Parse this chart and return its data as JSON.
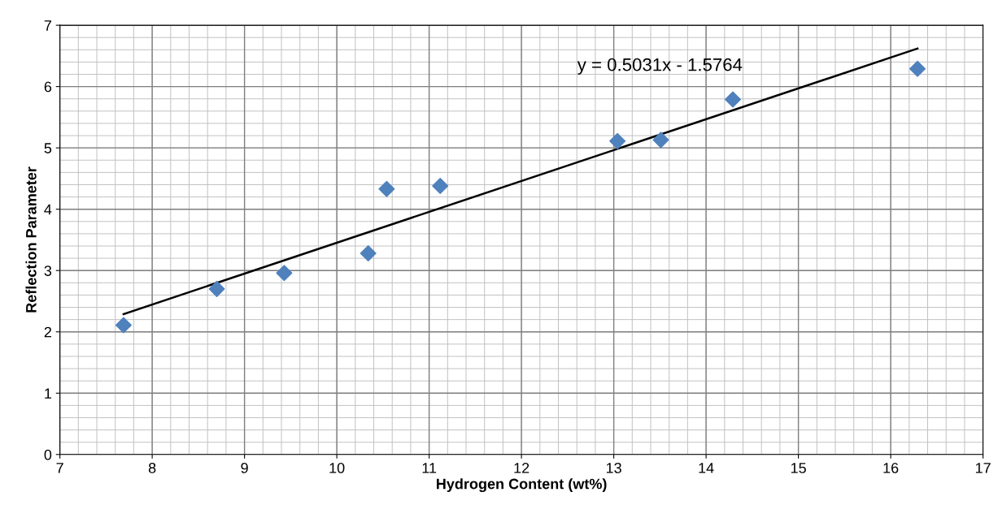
{
  "chart_data": {
    "type": "scatter",
    "xlabel": "Hydrogen Content (wt%)",
    "ylabel": "Reflection Parameter",
    "series": [
      {
        "type": "scatter",
        "color": "#4f81bd",
        "marker": "diamond",
        "x": [
          7.69,
          8.7,
          9.43,
          10.34,
          10.54,
          11.12,
          13.04,
          13.51,
          14.29,
          16.29
        ],
        "values": [
          2.11,
          2.7,
          2.96,
          3.28,
          4.33,
          4.38,
          5.11,
          5.13,
          5.79,
          6.29
        ]
      },
      {
        "type": "line",
        "color": "#000000",
        "marker": "none",
        "line_style": "solid",
        "x": [
          7.69,
          16.29
        ],
        "values": [
          2.29,
          6.62
        ]
      }
    ],
    "annotations": [
      "y = 0.5031x - 1.5764"
    ],
    "xlim": [
      7,
      17
    ],
    "xticks": [
      7,
      8,
      9,
      10,
      11,
      12,
      13,
      14,
      15,
      16,
      17
    ],
    "ylim": [
      0,
      7
    ],
    "yticks": [
      0,
      1,
      2,
      3,
      4,
      5,
      6,
      7
    ],
    "grid": true,
    "legend": false
  }
}
